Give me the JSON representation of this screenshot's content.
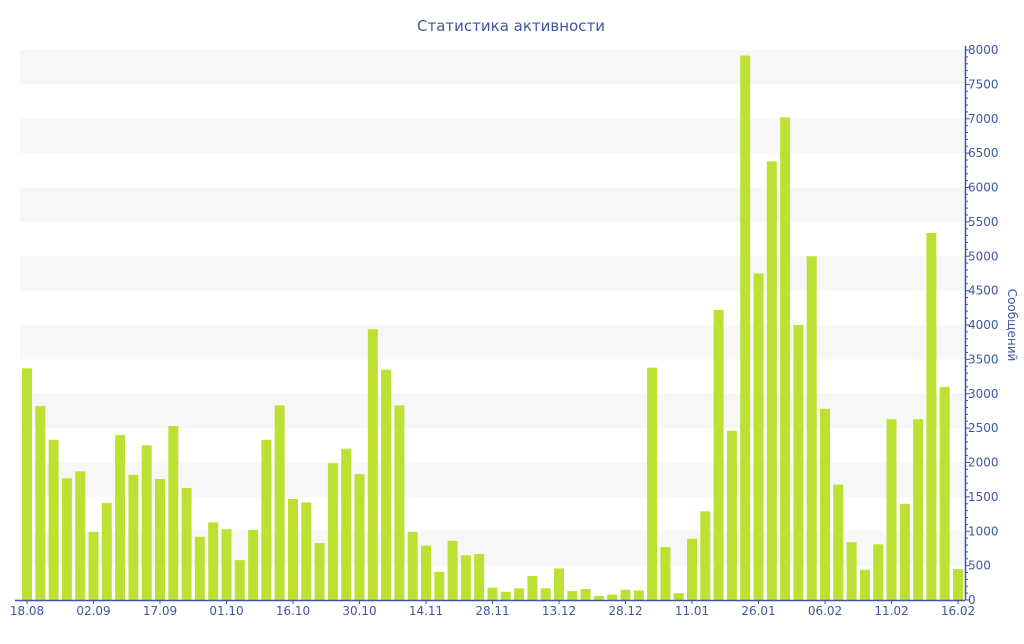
{
  "chart_data": {
    "type": "bar",
    "title": "Статистика активности",
    "xlabel": "",
    "ylabel": "Сообщений",
    "ylim": [
      0,
      8000
    ],
    "yticks": [
      0,
      500,
      1000,
      1500,
      2000,
      2500,
      3000,
      3500,
      4000,
      4500,
      5000,
      5500,
      6000,
      6500,
      7000,
      7500,
      8000
    ],
    "yaxis_position": "right",
    "grid": "alternating horizontal bands",
    "xtick_labels": [
      "18.08",
      "02.09",
      "17.09",
      "01.10",
      "16.10",
      "30.10",
      "14.11",
      "28.11",
      "13.12",
      "28.12",
      "11.01",
      "26.01",
      "06.02",
      "11.02",
      "16.02"
    ],
    "xtick_every_n_bars": 5,
    "values": [
      3370,
      2820,
      2330,
      1770,
      1870,
      990,
      1410,
      2400,
      1820,
      2250,
      1760,
      2530,
      1630,
      920,
      1130,
      1030,
      580,
      1020,
      2330,
      2830,
      1470,
      1420,
      830,
      1990,
      2200,
      1830,
      3940,
      3350,
      2830,
      990,
      790,
      410,
      860,
      650,
      670,
      180,
      120,
      170,
      350,
      170,
      460,
      130,
      160,
      60,
      80,
      150,
      140,
      3380,
      770,
      100,
      890,
      1290,
      4220,
      2460,
      7920,
      4750,
      6380,
      7020,
      4000,
      5000,
      2780,
      1680,
      840,
      440,
      810,
      2630,
      1400,
      2630,
      5340,
      3100,
      450
    ],
    "colors": {
      "bar": "#bde133",
      "axis": "#3f57a3",
      "text": "#3f57a3",
      "band": "#f7f7f7"
    }
  }
}
